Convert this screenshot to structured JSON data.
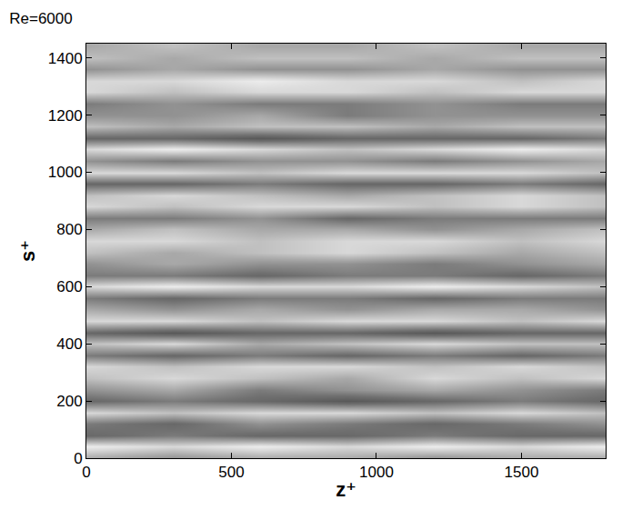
{
  "chart_data": {
    "type": "heatmap",
    "title": "Re=6000",
    "x_label": "z⁺",
    "y_label": "s⁺",
    "x": [
      0,
      300,
      600,
      900,
      1200,
      1500,
      1790
    ],
    "y": [
      0,
      40,
      80,
      120,
      160,
      200,
      240,
      280,
      320,
      360,
      400,
      440,
      480,
      520,
      560,
      600,
      640,
      680,
      720,
      760,
      800,
      840,
      880,
      920,
      960,
      1000,
      1040,
      1080,
      1120,
      1160,
      1200,
      1240,
      1280,
      1320,
      1360,
      1400,
      1440
    ],
    "cells": [
      [
        6,
        5,
        6,
        6,
        5,
        6,
        6
      ],
      [
        9,
        8,
        9,
        8,
        9,
        8,
        9
      ],
      [
        3,
        4,
        3,
        3,
        4,
        3,
        3
      ],
      [
        4,
        3,
        5,
        4,
        3,
        4,
        5
      ],
      [
        8,
        7,
        8,
        8,
        7,
        8,
        7
      ],
      [
        3,
        4,
        3,
        2,
        3,
        4,
        3
      ],
      [
        5,
        6,
        4,
        5,
        6,
        5,
        4
      ],
      [
        7,
        8,
        7,
        6,
        8,
        7,
        8
      ],
      [
        8,
        7,
        8,
        8,
        7,
        8,
        7
      ],
      [
        4,
        3,
        4,
        3,
        4,
        3,
        4
      ],
      [
        7,
        8,
        6,
        7,
        8,
        7,
        7
      ],
      [
        3,
        2,
        3,
        3,
        2,
        3,
        3
      ],
      [
        8,
        8,
        7,
        8,
        8,
        7,
        8
      ],
      [
        6,
        5,
        6,
        5,
        6,
        6,
        5
      ],
      [
        4,
        3,
        4,
        4,
        3,
        4,
        4
      ],
      [
        8,
        9,
        8,
        8,
        9,
        8,
        7
      ],
      [
        4,
        4,
        3,
        4,
        4,
        3,
        4
      ],
      [
        5,
        6,
        5,
        5,
        4,
        5,
        6
      ],
      [
        7,
        6,
        7,
        8,
        7,
        6,
        7
      ],
      [
        8,
        8,
        7,
        8,
        8,
        7,
        8
      ],
      [
        6,
        7,
        6,
        6,
        5,
        6,
        7
      ],
      [
        4,
        4,
        5,
        3,
        4,
        4,
        4
      ],
      [
        8,
        7,
        8,
        8,
        7,
        8,
        7
      ],
      [
        7,
        8,
        7,
        6,
        7,
        8,
        7
      ],
      [
        3,
        3,
        4,
        3,
        3,
        4,
        3
      ],
      [
        8,
        8,
        7,
        8,
        8,
        8,
        7
      ],
      [
        5,
        4,
        5,
        5,
        4,
        5,
        6
      ],
      [
        8,
        9,
        8,
        7,
        8,
        9,
        8
      ],
      [
        3,
        3,
        2,
        3,
        3,
        3,
        4
      ],
      [
        7,
        6,
        7,
        7,
        6,
        7,
        7
      ],
      [
        5,
        5,
        6,
        4,
        5,
        5,
        5
      ],
      [
        4,
        5,
        4,
        4,
        5,
        4,
        4
      ],
      [
        8,
        7,
        8,
        8,
        7,
        8,
        8
      ],
      [
        8,
        8,
        9,
        8,
        8,
        7,
        8
      ],
      [
        5,
        6,
        5,
        5,
        6,
        5,
        5
      ],
      [
        7,
        6,
        7,
        7,
        6,
        7,
        7
      ],
      [
        6,
        7,
        6,
        6,
        7,
        6,
        6
      ]
    ],
    "zlim": [
      0,
      10
    ],
    "xlim": [
      0,
      1790
    ],
    "ylim": [
      0,
      1450
    ],
    "xticks": [
      0,
      500,
      1000,
      1500
    ],
    "yticks": [
      0,
      200,
      400,
      600,
      800,
      1000,
      1200,
      1400
    ],
    "grid": false
  }
}
